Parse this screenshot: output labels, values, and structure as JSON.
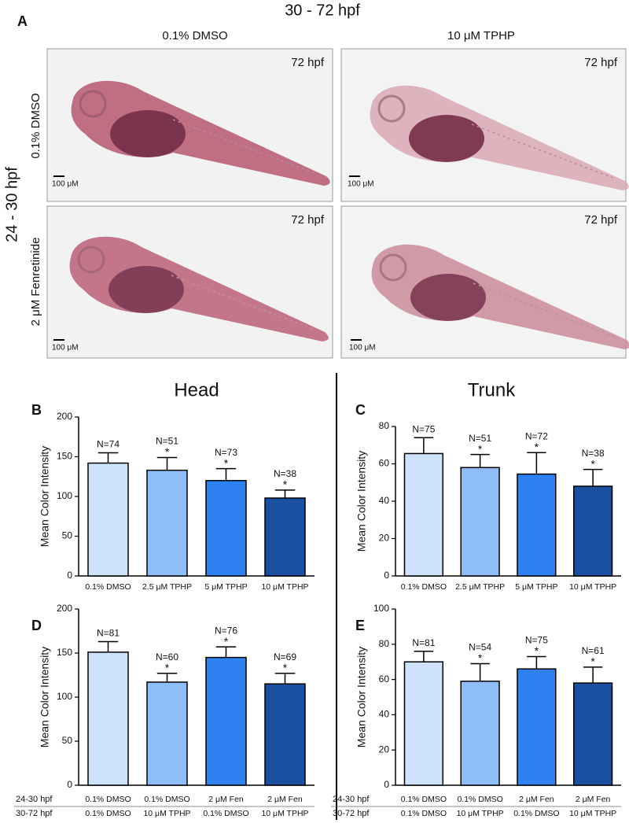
{
  "panel_a": {
    "letter": "A",
    "title": "30 - 72 hpf",
    "row_title": "24 - 30 hpf",
    "columns": [
      "0.1% DMSO",
      "10 μM TPHP"
    ],
    "rows": [
      "0.1% DMSO",
      "2 μM Fenretinide"
    ],
    "images": [
      {
        "stage": "72 hpf",
        "scale": "100 μM"
      },
      {
        "stage": "72 hpf",
        "scale": "100 μM"
      },
      {
        "stage": "72 hpf",
        "scale": "100 μM"
      },
      {
        "stage": "72 hpf",
        "scale": "100 μM"
      }
    ]
  },
  "chart_data": [
    {
      "type": "bar",
      "panel": "B",
      "title": "Head",
      "y_label": "Mean Color Intensity",
      "categories": [
        "0.1% DMSO",
        "2.5 μM TPHP",
        "5 μM TPHP",
        "10 μM TPHP"
      ],
      "values": [
        142,
        133,
        120,
        98
      ],
      "errors": [
        13,
        16,
        15,
        10
      ],
      "n_labels": [
        "N=74",
        "N=51",
        "N=73",
        "N=38"
      ],
      "sig_labels": [
        null,
        "*",
        "*",
        "*"
      ],
      "colors": [
        "#cfe2fb",
        "#8fbdf7",
        "#2f80f0",
        "#1b4fa0"
      ],
      "ylim": [
        0,
        200
      ],
      "yticks": [
        0,
        50,
        100,
        150,
        200
      ]
    },
    {
      "type": "bar",
      "panel": "C",
      "title": "Trunk",
      "y_label": "Mean Color Intensity",
      "categories": [
        "0.1% DMSO",
        "2.5 μM TPHP",
        "5 μM TPHP",
        "10 μM TPHP"
      ],
      "values": [
        65.5,
        58,
        54.5,
        48
      ],
      "errors": [
        8.5,
        7,
        11.5,
        9
      ],
      "n_labels": [
        "N=75",
        "N=51",
        "N=72",
        "N=38"
      ],
      "sig_labels": [
        null,
        "*",
        "*",
        "*"
      ],
      "colors": [
        "#cfe2fb",
        "#8fbdf7",
        "#2f80f0",
        "#1b4fa0"
      ],
      "ylim": [
        0,
        80
      ],
      "yticks": [
        0,
        20,
        40,
        60,
        80
      ]
    },
    {
      "type": "bar",
      "panel": "D",
      "y_label": "Mean Color Intensity",
      "category_levels": [
        {
          "name": "24-30 hpf",
          "labels": [
            "0.1% DMSO",
            "0.1% DMSO",
            "2 μM Fen",
            "2 μM Fen"
          ]
        },
        {
          "name": "30-72 hpf",
          "labels": [
            "0.1% DMSO",
            "10 μM TPHP",
            "0.1% DMSO",
            "10 μM TPHP"
          ]
        }
      ],
      "values": [
        151,
        117,
        145,
        115
      ],
      "errors": [
        12,
        10,
        12,
        12
      ],
      "n_labels": [
        "N=81",
        "N=60",
        "N=76",
        "N=69"
      ],
      "sig_labels": [
        null,
        "*",
        "*",
        "*"
      ],
      "colors": [
        "#cfe2fb",
        "#8fbdf7",
        "#2f80f0",
        "#1b4fa0"
      ],
      "ylim": [
        0,
        200
      ],
      "yticks": [
        0,
        50,
        100,
        150,
        200
      ]
    },
    {
      "type": "bar",
      "panel": "E",
      "y_label": "Mean Color Intensity",
      "category_levels": [
        {
          "name": "24-30 hpf",
          "labels": [
            "0.1% DMSO",
            "0.1% DMSO",
            "2 μM Fen",
            "2 μM Fen"
          ]
        },
        {
          "name": "30-72 hpf",
          "labels": [
            "0.1% DMSO",
            "10 μM TPHP",
            "0.1% DMSO",
            "10 μM TPHP"
          ]
        }
      ],
      "values": [
        70,
        59,
        66,
        58
      ],
      "errors": [
        6,
        10,
        7,
        9
      ],
      "n_labels": [
        "N=81",
        "N=54",
        "N=75",
        "N=61"
      ],
      "sig_labels": [
        null,
        "*",
        "*",
        "*"
      ],
      "colors": [
        "#cfe2fb",
        "#8fbdf7",
        "#2f80f0",
        "#1b4fa0"
      ],
      "ylim": [
        0,
        100
      ],
      "yticks": [
        0,
        20,
        40,
        60,
        80,
        100
      ]
    }
  ]
}
